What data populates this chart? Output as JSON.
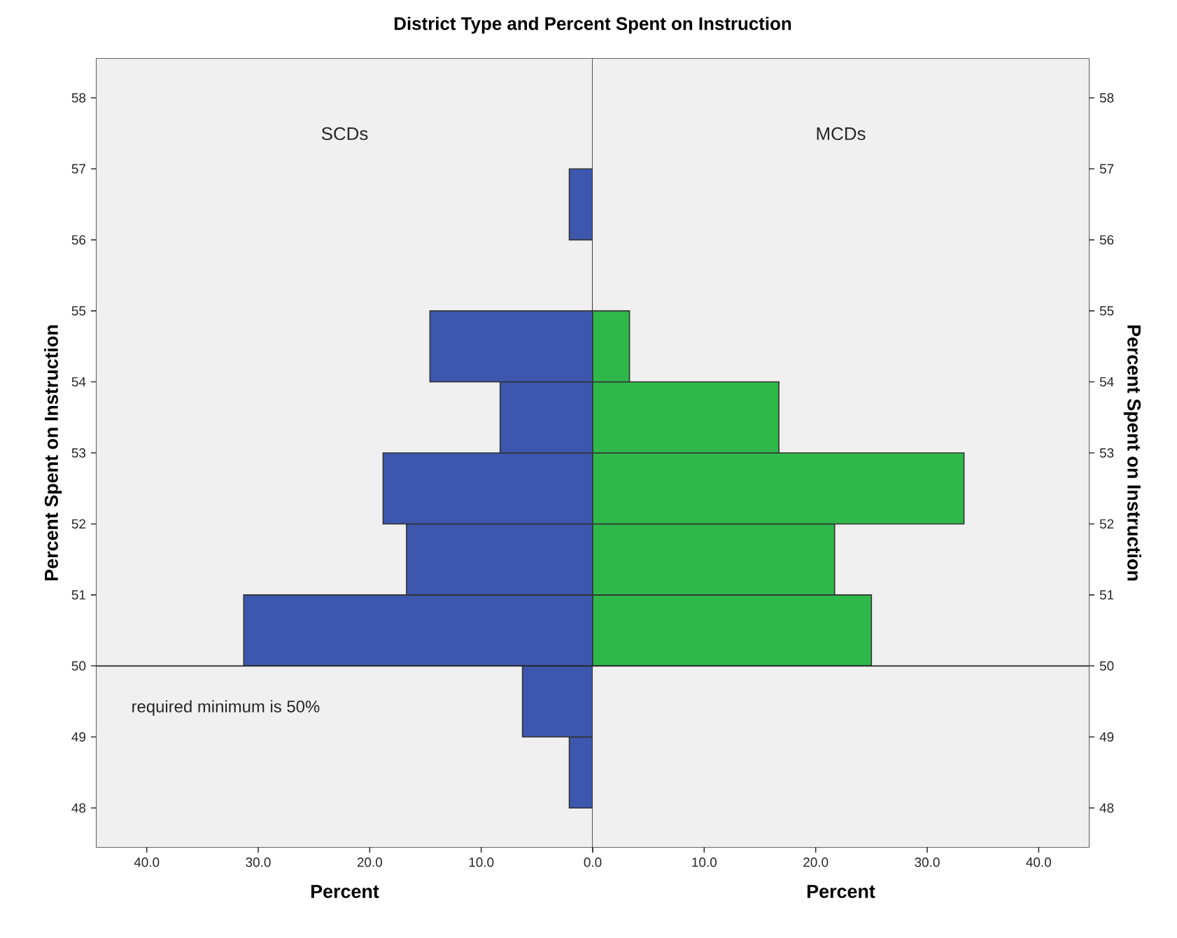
{
  "chart_data": [
    {
      "type": "histogram",
      "orientation": "horizontal",
      "title": "District Type and Percent Spent on Instruction",
      "xlabel": "Percent",
      "ylabel": "Percent Spent on Instruction",
      "annotations": [
        "SCDs"
      ],
      "color": "#3c57ad",
      "bins": [
        48,
        49,
        50,
        51,
        52,
        53,
        54,
        55,
        56,
        57
      ],
      "values": [
        2.1,
        6.3,
        31.3,
        16.7,
        18.8,
        8.3,
        14.6,
        0,
        2.1
      ],
      "xlim": [
        44.5,
        0
      ],
      "xticks": [
        {
          "value": 40,
          "label": "40.0"
        },
        {
          "value": 30,
          "label": "30.0"
        },
        {
          "value": 20,
          "label": "20.0"
        },
        {
          "value": 10,
          "label": "10.0"
        },
        {
          "value": 0,
          "label": null
        }
      ],
      "ylim": [
        47.45,
        58.55
      ],
      "yticks": [
        48,
        49,
        50,
        51,
        52,
        53,
        54,
        55,
        56,
        57,
        58
      ],
      "ref_lines": [
        {
          "axis": "y",
          "value": 50,
          "label": "required minimum is 50%"
        }
      ]
    },
    {
      "type": "histogram",
      "orientation": "horizontal",
      "xlabel": "Percent",
      "ylabel": "Percent Spent on Instruction",
      "annotations": [
        "MCDs"
      ],
      "color": "#2eb84a",
      "bins": [
        50,
        51,
        52,
        53,
        54,
        55
      ],
      "values": [
        25.0,
        21.7,
        33.3,
        16.7,
        3.3
      ],
      "xlim": [
        0,
        44.5
      ],
      "xticks": [
        {
          "value": 0,
          "label": "0.0"
        },
        {
          "value": 10,
          "label": "10.0"
        },
        {
          "value": 20,
          "label": "20.0"
        },
        {
          "value": 30,
          "label": "30.0"
        },
        {
          "value": 40,
          "label": "40.0"
        }
      ],
      "ylim": [
        47.45,
        58.55
      ],
      "yticks": [
        48,
        49,
        50,
        51,
        52,
        53,
        54,
        55,
        56,
        57,
        58
      ],
      "ref_lines": [
        {
          "axis": "y",
          "value": 50
        }
      ]
    }
  ]
}
